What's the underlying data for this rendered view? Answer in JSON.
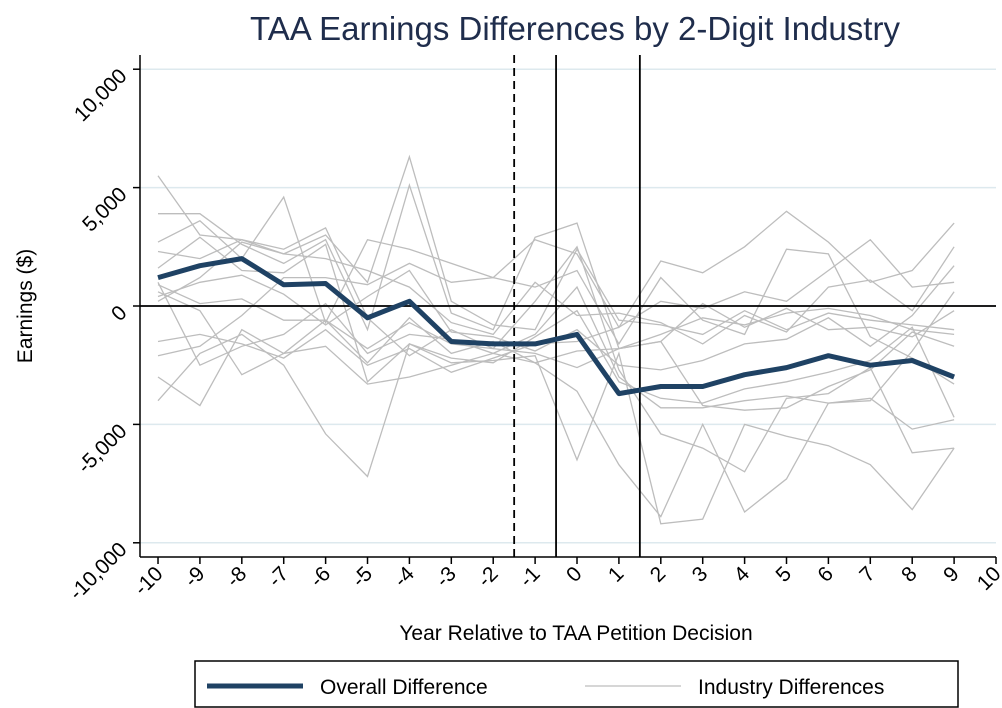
{
  "chart_data": {
    "type": "line",
    "title": "TAA Earnings Differences by 2-Digit Industry",
    "x_label": "Year Relative to TAA Petition Decision",
    "y_label": "Earnings ($)",
    "x": [
      -10,
      -9,
      -8,
      -7,
      -6,
      -5,
      -4,
      -3,
      -2,
      -1,
      0,
      1,
      2,
      3,
      4,
      5,
      6,
      7,
      8,
      9
    ],
    "xlim": [
      -10.43,
      10
    ],
    "xticks": [
      -10,
      -9,
      -8,
      -7,
      -6,
      -5,
      -4,
      -3,
      -2,
      -1,
      0,
      1,
      2,
      3,
      4,
      5,
      6,
      7,
      8,
      9,
      10
    ],
    "ylim": [
      -10600,
      10600
    ],
    "yticks": [
      {
        "value": -10000,
        "label": "-10,000"
      },
      {
        "value": -5000,
        "label": "-5,000"
      },
      0,
      {
        "value": 5000,
        "label": "5,000"
      },
      {
        "value": 10000,
        "label": "10,000"
      }
    ],
    "grid": true,
    "hline": 0,
    "vlines": [
      {
        "x": -1.5,
        "style": "dashed"
      },
      {
        "x": -0.5,
        "style": "solid"
      },
      {
        "x": 1.5,
        "style": "solid"
      }
    ],
    "legend": "bottom",
    "series": [
      {
        "name": "Overall Difference",
        "color": "#1f4264",
        "values": [
          1200,
          1700,
          2000,
          900,
          950,
          -500,
          200,
          -1500,
          -1600,
          -1600,
          -1200,
          -3700,
          -3400,
          -3400,
          -2900,
          -2600,
          -2100,
          -2500,
          -2300,
          -3000
        ]
      },
      {
        "name": "Industry Differences",
        "color": "#bdbdbd",
        "values": [
          [
            5500,
            3000,
            2800,
            2200,
            3000,
            1000,
            6300,
            200,
            -800,
            -1000,
            2400,
            -600,
            -800,
            -1200,
            -200,
            -1000,
            -300,
            -600,
            -800,
            -1000
          ],
          [
            3900,
            3900,
            2600,
            1800,
            2800,
            -1000,
            5100,
            -300,
            -1000,
            2900,
            3500,
            -1800,
            -1200,
            -500,
            -800,
            -300,
            -100,
            -400,
            -1000,
            -1200
          ],
          [
            2700,
            3600,
            2000,
            4600,
            -700,
            2800,
            2400,
            1800,
            1200,
            2800,
            2200,
            -900,
            1900,
            1400,
            2500,
            4000,
            2700,
            1000,
            1500,
            3500
          ],
          [
            -4000,
            -2000,
            -1200,
            -2500,
            -5400,
            -7200,
            -1600,
            -2400,
            -2300,
            -2100,
            -6500,
            -2000,
            -9200,
            -9000,
            -5000,
            -5500,
            -5900,
            -6700,
            -8600,
            -6000
          ],
          [
            -3000,
            -4200,
            -1000,
            -2000,
            -1700,
            -3300,
            -3000,
            -2500,
            -2000,
            -2400,
            -3600,
            -6700,
            -8900,
            -5000,
            -8700,
            -7300,
            -4100,
            -3900,
            -5200,
            -4800
          ],
          [
            2300,
            2000,
            2800,
            2400,
            3300,
            -500,
            -2100,
            -1000,
            -1800,
            200,
            2500,
            -2700,
            -5400,
            -6000,
            -7000,
            -3900,
            -3700,
            -2600,
            -6200,
            -6000
          ],
          [
            600,
            -200,
            -2900,
            -2000,
            -600,
            -1800,
            -700,
            -1600,
            -1800,
            -2000,
            -2600,
            -1800,
            -1500,
            -4200,
            -4400,
            -4300,
            -3400,
            -2700,
            -1100,
            -1700
          ],
          [
            1000,
            -2500,
            -1700,
            -1200,
            100,
            -2000,
            -1200,
            -1400,
            -2000,
            -1200,
            800,
            -3000,
            -4300,
            -4300,
            -4000,
            -3800,
            -4100,
            -4000,
            -1900,
            600
          ],
          [
            -1500,
            -1200,
            -1600,
            -2200,
            -1000,
            -2500,
            -1800,
            -2800,
            -2200,
            -1600,
            -1500,
            -900,
            200,
            -100,
            600,
            200,
            1500,
            2800,
            800,
            1000
          ],
          [
            200,
            1200,
            2700,
            2200,
            2000,
            1500,
            800,
            -700,
            -1200,
            1000,
            -400,
            -300,
            -700,
            -1600,
            -400,
            -1100,
            800,
            1100,
            -200,
            2500
          ],
          [
            -2100,
            -1700,
            -400,
            1200,
            1200,
            900,
            1800,
            1000,
            1200,
            800,
            1500,
            -1600,
            1200,
            -600,
            -1200,
            2400,
            2200,
            -1300,
            -2200,
            -3300
          ],
          [
            1600,
            2900,
            1500,
            1400,
            2600,
            -3200,
            -1600,
            -2200,
            -2400,
            -1300,
            -200,
            -3200,
            -3900,
            -4100,
            -3500,
            -3200,
            -2800,
            -2300,
            -900,
            -4700
          ],
          [
            400,
            1000,
            1300,
            500,
            -800,
            400,
            1500,
            -1100,
            -1300,
            -1900,
            -1000,
            -2500,
            -2700,
            -2300,
            -1600,
            -1400,
            -500,
            -1700,
            -400,
            1700
          ],
          [
            900,
            100,
            300,
            -600,
            -600,
            -2400,
            -500,
            -2000,
            -1500,
            -2400,
            -1900,
            -1800,
            -1500,
            100,
            -900,
            -100,
            -1000,
            -900,
            -1300,
            -200
          ]
        ]
      }
    ]
  }
}
